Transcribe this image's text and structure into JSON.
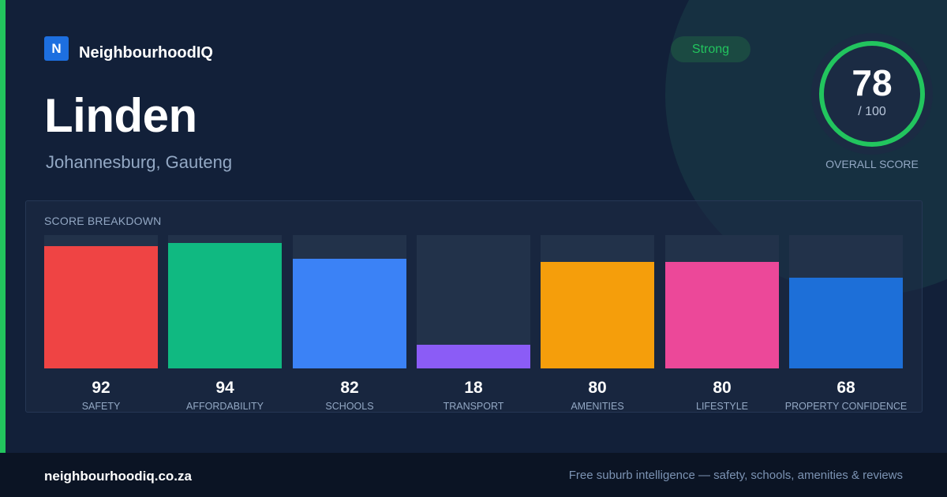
{
  "brand": {
    "logo_letter": "N",
    "name": "NeighbourhoodIQ"
  },
  "suburb": {
    "name": "Linden",
    "location": "Johannesburg, Gauteng"
  },
  "badge": {
    "label": "Strong"
  },
  "overall": {
    "score": "78",
    "max_label": "/ 100",
    "score_fraction": 0.78,
    "caption": "OVERALL SCORE"
  },
  "panel": {
    "title": "SCORE BREAKDOWN"
  },
  "chart_data": {
    "type": "bar",
    "title": "SCORE BREAKDOWN",
    "categories": [
      "SAFETY",
      "AFFORDABILITY",
      "SCHOOLS",
      "TRANSPORT",
      "AMENITIES",
      "LIFESTYLE",
      "PROPERTY CONFIDENCE"
    ],
    "values": [
      92,
      94,
      82,
      18,
      80,
      80,
      68
    ],
    "colors": [
      "#ef4444",
      "#10b981",
      "#3b82f6",
      "#8b5cf6",
      "#f59e0b",
      "#ec4899",
      "#1d6fd8"
    ],
    "ylim": [
      0,
      100
    ],
    "grid": false,
    "legend": "none"
  },
  "footer": {
    "url": "neighbourhoodiq.co.za",
    "tagline": "Free suburb intelligence — safety, schools, amenities & reviews"
  },
  "colors": {
    "accent": "#22c55e",
    "brand": "#1d6fe0",
    "background": "#122039",
    "footer": "#0b1424"
  },
  "icons": {
    "logo": "letter-n-logo-icon"
  }
}
